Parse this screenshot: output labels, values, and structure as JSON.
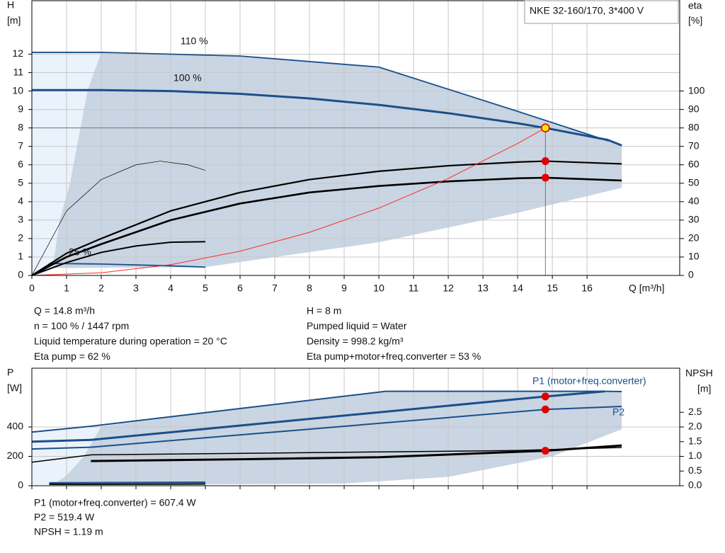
{
  "chart_data": [
    {
      "type": "line",
      "title": "NKE 32-160/170, 3*400 V",
      "xlabel": "Q [m³/h]",
      "ylabel": "H",
      "yunit": "[m]",
      "y2label": "eta",
      "y2unit": "[%]",
      "xlim": [
        0,
        18.67
      ],
      "xticks": [
        0,
        1,
        2,
        3,
        4,
        5,
        6,
        7,
        8,
        9,
        10,
        11,
        12,
        13,
        14,
        15,
        16
      ],
      "xtick_labels": true,
      "ylim": [
        0,
        14.9
      ],
      "yticks": [
        0,
        1,
        2,
        3,
        4,
        5,
        6,
        7,
        8,
        9,
        10,
        11,
        12
      ],
      "y2lim": [
        0,
        149
      ],
      "y2ticks": [
        0,
        10,
        20,
        30,
        40,
        50,
        60,
        70,
        80,
        90,
        100
      ],
      "grid": true,
      "ranges": [
        {
          "color": "#eaf2fb",
          "x": [
            0,
            2,
            1.6,
            1.4,
            1.1,
            0.8,
            0.6,
            0.3,
            0
          ],
          "values": [
            12.1,
            12.1,
            10,
            8,
            5,
            3,
            0.4,
            0,
            0
          ]
        },
        {
          "color": "#c9d5e2",
          "x": [
            2,
            6,
            10,
            14,
            17,
            17,
            14,
            10,
            7,
            5,
            0.6,
            0.8,
            1.1,
            1.4,
            1.6,
            2
          ],
          "values": [
            12.1,
            11.9,
            11.3,
            8.9,
            7.1,
            4.75,
            3.4,
            1.8,
            1.0,
            0.45,
            0.4,
            3,
            5,
            8,
            10,
            12.1
          ]
        }
      ],
      "series": [
        {
          "name": "110 %",
          "color": "#1b4f8a",
          "width": 1.8,
          "x": [
            0,
            2,
            6,
            10,
            14,
            16.6
          ],
          "values": [
            12.1,
            12.1,
            11.9,
            11.3,
            8.9,
            7.3
          ]
        },
        {
          "name": "100 %",
          "color": "#1b4f8a",
          "width": 3,
          "x": [
            0,
            2,
            4,
            6,
            8,
            10,
            12,
            14,
            14.8,
            16.6,
            17
          ],
          "values": [
            10.05,
            10.05,
            10.0,
            9.85,
            9.6,
            9.25,
            8.8,
            8.25,
            8.0,
            7.35,
            7.05
          ]
        },
        {
          "name": "25 %",
          "color": "#1b4f8a",
          "width": 1.8,
          "x": [
            0.5,
            2,
            4,
            5
          ],
          "values": [
            0.65,
            0.62,
            0.52,
            0.45
          ]
        },
        {
          "color": "#000000",
          "width": 2.2,
          "axis": "y2",
          "x": [
            0,
            1,
            2,
            4,
            6,
            8,
            10,
            12,
            14,
            14.8,
            17
          ],
          "values": [
            0,
            12,
            20,
            35,
            45,
            52,
            56.5,
            59.5,
            61.5,
            62,
            60.5
          ]
        },
        {
          "color": "#000000",
          "width": 2.6,
          "axis": "y2",
          "x": [
            0,
            1,
            2,
            4,
            6,
            8,
            10,
            12,
            14,
            14.8,
            17
          ],
          "values": [
            0,
            10,
            17,
            30,
            39,
            45,
            48.5,
            51,
            52.7,
            53,
            51.5
          ]
        },
        {
          "color": "#000000",
          "width": 2,
          "axis": "y2",
          "x": [
            0,
            1,
            2,
            3,
            4,
            5
          ],
          "values": [
            0,
            7,
            12.5,
            16,
            18,
            18.3
          ]
        },
        {
          "color": "#000000",
          "width": 0.7,
          "axis": "y2",
          "x": [
            0,
            1,
            2,
            3,
            3.7,
            4.5,
            5
          ],
          "values": [
            0,
            35,
            52,
            60,
            62,
            60,
            57
          ]
        },
        {
          "color": "#ff2a2a",
          "width": 1,
          "x": [
            0,
            2,
            4,
            6,
            8,
            10,
            12,
            14,
            14.8
          ],
          "values": [
            0,
            0.146,
            0.584,
            1.315,
            2.337,
            3.652,
            5.259,
            7.159,
            8
          ]
        }
      ],
      "markers": [
        {
          "x": 14.8,
          "value": 8,
          "color": "#ffe600",
          "guides": true
        },
        {
          "x": 14.8,
          "value": 62,
          "axis": "y2",
          "color": "#e00000"
        },
        {
          "x": 14.8,
          "value": 53,
          "axis": "y2",
          "color": "#e00000"
        }
      ]
    },
    {
      "type": "line",
      "ylabel": "P",
      "yunit": "[W]",
      "y2label": "NPSH",
      "y2unit": "[m]",
      "xlim": [
        0,
        18.67
      ],
      "xticks": [
        0,
        1,
        2,
        3,
        4,
        5,
        6,
        7,
        8,
        9,
        10,
        11,
        12,
        13,
        14,
        15,
        16
      ],
      "xtick_labels": false,
      "ylim": [
        0,
        800
      ],
      "yticks": [
        0,
        200,
        400
      ],
      "y2lim": [
        0,
        4
      ],
      "y2ticks": [
        {
          "value": 0,
          "label": "0.0"
        },
        0.5,
        {
          "value": 1,
          "label": "1.0"
        },
        1.5,
        {
          "value": 2,
          "label": "2.0"
        },
        2.5
      ],
      "grid": true,
      "ranges": [
        {
          "color": "#eaf2fb",
          "x": [
            0,
            2,
            1.5,
            1,
            0.6,
            0
          ],
          "values": [
            360,
            405,
            200,
            70,
            5,
            5
          ]
        },
        {
          "color": "#c9d5e2",
          "x": [
            2,
            10.2,
            16.5,
            17,
            17,
            15,
            12,
            9,
            5,
            0.6,
            1,
            1.5,
            2
          ],
          "values": [
            405,
            643,
            643,
            641,
            385,
            200,
            60,
            15,
            10,
            5,
            70,
            200,
            405
          ]
        }
      ],
      "series": [
        {
          "color": "#1b4f8a",
          "width": 2,
          "x": [
            0,
            1.7,
            10.2,
            16.5,
            17
          ],
          "values": [
            365,
            405,
            643,
            643,
            641
          ]
        },
        {
          "name": "P1 (motor+freq.converter)",
          "color": "#1b4f8a",
          "width": 3,
          "x": [
            0,
            1.7,
            8,
            14.8,
            16.5
          ],
          "values": [
            300,
            312,
            455,
            607.4,
            642
          ]
        },
        {
          "name": "P2",
          "color": "#1b4f8a",
          "width": 2,
          "x": [
            0,
            1.7,
            8,
            14.8,
            17
          ],
          "values": [
            250,
            262,
            385,
            519.4,
            540
          ]
        },
        {
          "color": "#1b4f8a",
          "width": 2,
          "x": [
            0.5,
            5
          ],
          "values": [
            20,
            24
          ]
        },
        {
          "color": "#000000",
          "width": 1.5,
          "axis": "y2",
          "x": [
            0,
            1.7,
            10,
            14,
            17
          ],
          "values": [
            0.8,
            1.05,
            1.15,
            1.2,
            1.3
          ]
        },
        {
          "color": "#000000",
          "width": 3,
          "axis": "y2",
          "x": [
            1.7,
            6,
            10,
            14.8,
            17
          ],
          "values": [
            0.84,
            0.9,
            0.97,
            1.19,
            1.37
          ]
        },
        {
          "color": "#000000",
          "width": 2,
          "axis": "y2",
          "x": [
            0.5,
            5
          ],
          "values": [
            0.05,
            0.06
          ]
        }
      ],
      "markers": [
        {
          "x": 14.8,
          "value": 607.4,
          "color": "#e00000"
        },
        {
          "x": 14.8,
          "value": 519.4,
          "color": "#e00000"
        },
        {
          "x": 14.8,
          "value": 1.19,
          "axis": "y2",
          "color": "#e00000"
        }
      ]
    }
  ],
  "info": {
    "left": [
      "Q = 14.8 m³/h",
      "n = 100 % / 1447 rpm",
      "Liquid temperature during operation = 20 °C",
      "Eta pump = 62 %"
    ],
    "right": [
      "H = 8 m",
      "Pumped liquid = Water",
      "Density = 998.2 kg/m³",
      "Eta pump+motor+freq.converter = 53 %"
    ],
    "bottom": [
      "P1 (motor+freq.converter) = 607.4 W",
      "P2 = 519.4 W",
      "NPSH = 1.19 m"
    ]
  }
}
